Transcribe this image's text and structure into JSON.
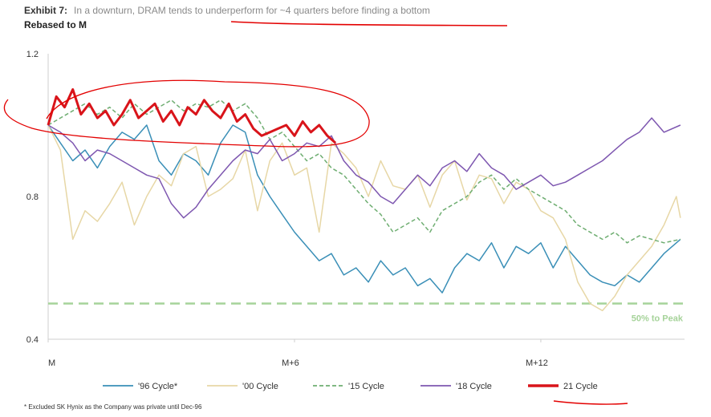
{
  "header": {
    "exhibit_label": "Exhibit 7:",
    "title": "In a downturn, DRAM tends to underperform for ~4 quarters before finding a bottom",
    "subtitle": "Rebased to M"
  },
  "footnote": "* Excluded SK Hynix as the Company was private until  Dec-96",
  "colors": {
    "c96": "#3a8fb7",
    "c00": "#e7d7a6",
    "c15": "#6fae72",
    "c18": "#7e57b0",
    "c21": "#d9141a",
    "ref": "#a6d39a",
    "markup": "#e30000",
    "axis": "#cfcfcf"
  },
  "chart_data": {
    "type": "line",
    "ylim": [
      0.4,
      1.2
    ],
    "yticks": [
      1.2,
      0.8,
      0.4
    ],
    "xlim": [
      0,
      15.5
    ],
    "xticks": [
      {
        "value": 0,
        "label": "M"
      },
      {
        "value": 6,
        "label": "M+6"
      },
      {
        "value": 12,
        "label": "M+12"
      }
    ],
    "reference_line": {
      "value": 0.5,
      "label": "50% to Peak"
    },
    "series": [
      {
        "name": "'96 Cycle*",
        "color_key": "c96",
        "dash": "solid",
        "x": [
          0,
          0.3,
          0.6,
          0.9,
          1.2,
          1.5,
          1.8,
          2.1,
          2.4,
          2.7,
          3.0,
          3.3,
          3.6,
          3.9,
          4.2,
          4.5,
          4.8,
          5.1,
          5.4,
          5.7,
          6.0,
          6.3,
          6.6,
          6.9,
          7.2,
          7.5,
          7.8,
          8.1,
          8.4,
          8.7,
          9.0,
          9.3,
          9.6,
          9.9,
          10.2,
          10.5,
          10.8,
          11.1,
          11.4,
          11.7,
          12.0,
          12.3,
          12.6,
          12.9,
          13.2,
          13.5,
          13.8,
          14.1,
          14.4,
          14.7,
          15.0,
          15.4
        ],
        "y": [
          1.0,
          0.95,
          0.9,
          0.93,
          0.88,
          0.94,
          0.98,
          0.96,
          1.0,
          0.9,
          0.86,
          0.92,
          0.9,
          0.86,
          0.95,
          1.0,
          0.98,
          0.86,
          0.8,
          0.75,
          0.7,
          0.66,
          0.62,
          0.64,
          0.58,
          0.6,
          0.56,
          0.62,
          0.58,
          0.6,
          0.55,
          0.57,
          0.53,
          0.6,
          0.64,
          0.62,
          0.67,
          0.6,
          0.66,
          0.64,
          0.67,
          0.6,
          0.66,
          0.62,
          0.58,
          0.56,
          0.55,
          0.58,
          0.56,
          0.6,
          0.64,
          0.68
        ]
      },
      {
        "name": "'00 Cycle",
        "color_key": "c00",
        "dash": "solid",
        "x": [
          0,
          0.3,
          0.6,
          0.9,
          1.2,
          1.5,
          1.8,
          2.1,
          2.4,
          2.7,
          3.0,
          3.3,
          3.6,
          3.9,
          4.2,
          4.5,
          4.8,
          5.1,
          5.4,
          5.7,
          6.0,
          6.3,
          6.6,
          6.9,
          7.2,
          7.5,
          7.8,
          8.1,
          8.4,
          8.7,
          9.0,
          9.3,
          9.6,
          9.9,
          10.2,
          10.5,
          10.8,
          11.1,
          11.4,
          11.7,
          12.0,
          12.3,
          12.6,
          12.9,
          13.2,
          13.5,
          13.8,
          14.1,
          14.4,
          14.7,
          15.0,
          15.3,
          15.4
        ],
        "y": [
          1.0,
          0.93,
          0.68,
          0.76,
          0.73,
          0.78,
          0.84,
          0.72,
          0.8,
          0.86,
          0.83,
          0.92,
          0.94,
          0.8,
          0.82,
          0.85,
          0.93,
          0.76,
          0.9,
          0.95,
          0.86,
          0.88,
          0.7,
          0.95,
          0.92,
          0.88,
          0.8,
          0.9,
          0.83,
          0.82,
          0.86,
          0.77,
          0.86,
          0.9,
          0.79,
          0.86,
          0.85,
          0.78,
          0.84,
          0.82,
          0.76,
          0.74,
          0.68,
          0.56,
          0.5,
          0.48,
          0.52,
          0.58,
          0.62,
          0.66,
          0.72,
          0.8,
          0.74
        ]
      },
      {
        "name": "'15 Cycle",
        "color_key": "c15",
        "dash": "dashed",
        "x": [
          0,
          0.3,
          0.6,
          0.9,
          1.2,
          1.5,
          1.8,
          2.1,
          2.4,
          2.7,
          3.0,
          3.3,
          3.6,
          3.9,
          4.2,
          4.5,
          4.8,
          5.1,
          5.4,
          5.7,
          6.0,
          6.3,
          6.6,
          6.9,
          7.2,
          7.5,
          7.8,
          8.1,
          8.4,
          8.7,
          9.0,
          9.3,
          9.6,
          9.9,
          10.2,
          10.5,
          10.8,
          11.1,
          11.4,
          11.7,
          12.0,
          12.3,
          12.6,
          12.9,
          13.2,
          13.5,
          13.8,
          14.1,
          14.4,
          14.7,
          15.0,
          15.4
        ],
        "y": [
          1.0,
          1.02,
          1.04,
          1.06,
          1.03,
          1.05,
          1.02,
          1.06,
          1.03,
          1.05,
          1.07,
          1.04,
          1.06,
          1.05,
          1.07,
          1.04,
          1.06,
          1.02,
          0.96,
          0.98,
          0.94,
          0.9,
          0.92,
          0.88,
          0.86,
          0.82,
          0.78,
          0.75,
          0.7,
          0.72,
          0.74,
          0.7,
          0.76,
          0.78,
          0.8,
          0.84,
          0.86,
          0.82,
          0.85,
          0.82,
          0.8,
          0.78,
          0.76,
          0.72,
          0.7,
          0.68,
          0.7,
          0.67,
          0.69,
          0.68,
          0.67,
          0.68
        ]
      },
      {
        "name": "'18 Cycle",
        "color_key": "c18",
        "dash": "solid",
        "x": [
          0,
          0.3,
          0.6,
          0.9,
          1.2,
          1.5,
          1.8,
          2.1,
          2.4,
          2.7,
          3.0,
          3.3,
          3.6,
          3.9,
          4.2,
          4.5,
          4.8,
          5.1,
          5.4,
          5.7,
          6.0,
          6.3,
          6.6,
          6.9,
          7.2,
          7.5,
          7.8,
          8.1,
          8.4,
          8.7,
          9.0,
          9.3,
          9.6,
          9.9,
          10.2,
          10.5,
          10.8,
          11.1,
          11.4,
          11.7,
          12.0,
          12.3,
          12.6,
          12.9,
          13.2,
          13.5,
          13.8,
          14.1,
          14.4,
          14.7,
          15.0,
          15.4
        ],
        "y": [
          1.0,
          0.98,
          0.95,
          0.9,
          0.93,
          0.92,
          0.9,
          0.88,
          0.86,
          0.85,
          0.78,
          0.74,
          0.77,
          0.82,
          0.86,
          0.9,
          0.93,
          0.92,
          0.96,
          0.9,
          0.92,
          0.95,
          0.94,
          0.97,
          0.9,
          0.86,
          0.84,
          0.8,
          0.78,
          0.82,
          0.86,
          0.83,
          0.88,
          0.9,
          0.87,
          0.92,
          0.88,
          0.86,
          0.82,
          0.84,
          0.86,
          0.83,
          0.84,
          0.86,
          0.88,
          0.9,
          0.93,
          0.96,
          0.98,
          1.02,
          0.98,
          1.0
        ]
      },
      {
        "name": "21 Cycle",
        "color_key": "c21",
        "dash": "solid",
        "x": [
          0,
          0.2,
          0.4,
          0.6,
          0.8,
          1.0,
          1.2,
          1.4,
          1.6,
          1.8,
          2.0,
          2.2,
          2.4,
          2.6,
          2.8,
          3.0,
          3.2,
          3.4,
          3.6,
          3.8,
          4.0,
          4.2,
          4.4,
          4.6,
          4.8,
          5.0,
          5.2,
          5.4,
          5.6,
          5.8,
          6.0,
          6.2,
          6.4,
          6.6,
          6.8,
          7.0
        ],
        "y": [
          1.0,
          1.08,
          1.05,
          1.1,
          1.03,
          1.06,
          1.02,
          1.04,
          1.0,
          1.03,
          1.07,
          1.02,
          1.04,
          1.06,
          1.01,
          1.04,
          1.0,
          1.05,
          1.03,
          1.07,
          1.04,
          1.02,
          1.06,
          1.01,
          1.03,
          0.99,
          0.97,
          0.98,
          0.99,
          1.0,
          0.97,
          1.01,
          0.98,
          1.0,
          0.97,
          0.95
        ]
      }
    ]
  }
}
